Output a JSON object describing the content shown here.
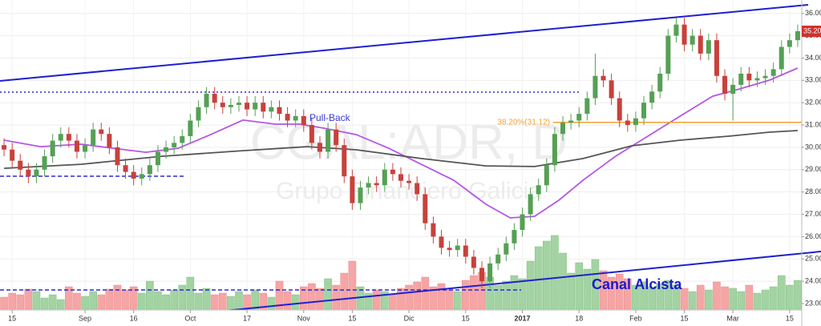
{
  "chart_data": {
    "type": "candlestick",
    "title": "CGAL:ADR, D",
    "subtitle": "Grupo Financiero Galicia",
    "categories": [
      null,
      "15",
      null,
      null,
      null,
      null,
      null,
      null,
      null,
      null,
      "Sep",
      null,
      null,
      null,
      null,
      null,
      "16",
      null,
      null,
      null,
      null,
      null,
      null,
      "Oct",
      null,
      null,
      null,
      null,
      null,
      null,
      "17",
      null,
      null,
      null,
      null,
      null,
      null,
      "Nov",
      null,
      null,
      null,
      null,
      null,
      "15",
      null,
      null,
      null,
      null,
      null,
      null,
      "Dic",
      null,
      null,
      null,
      null,
      null,
      null,
      "15",
      null,
      null,
      null,
      null,
      null,
      null,
      "2017",
      null,
      null,
      null,
      null,
      null,
      null,
      "18",
      null,
      null,
      null,
      null,
      null,
      null,
      "Feb",
      null,
      null,
      null,
      null,
      null,
      "15",
      null,
      null,
      null,
      null,
      null,
      "Mar",
      null,
      null,
      null,
      null,
      null,
      null,
      "15",
      null
    ],
    "open": [
      30.1,
      29.9,
      29.4,
      29.0,
      28.7,
      29.0,
      29.6,
      30.3,
      30.6,
      30.3,
      29.8,
      30.1,
      30.8,
      30.6,
      30.0,
      29.2,
      28.9,
      28.6,
      28.8,
      29.2,
      29.8,
      30.0,
      30.2,
      30.5,
      31.2,
      31.8,
      32.4,
      32.0,
      31.8,
      31.9,
      32.0,
      31.7,
      32.0,
      31.6,
      31.8,
      31.5,
      31.2,
      31.4,
      31.0,
      30.2,
      29.8,
      30.8,
      30.1,
      28.7,
      27.5,
      28.2,
      28.4,
      28.3,
      29.0,
      28.8,
      28.5,
      28.4,
      27.9,
      26.6,
      26.0,
      25.5,
      25.4,
      25.6,
      25.1,
      24.6,
      24.0,
      24.8,
      25.2,
      25.7,
      26.3,
      27.0,
      27.9,
      28.3,
      29.2,
      30.6,
      31.1,
      31.2,
      31.5,
      32.2,
      33.2,
      33.0,
      32.2,
      31.2,
      31.0,
      31.3,
      32.0,
      32.5,
      33.3,
      35.0,
      35.5,
      34.6,
      35.0,
      34.2,
      34.8,
      33.2,
      32.4,
      32.8,
      33.3,
      33.0,
      33.1,
      33.2,
      33.5,
      34.5,
      34.8
    ],
    "high": [
      30.4,
      30.2,
      29.7,
      29.3,
      29.3,
      29.9,
      30.6,
      30.9,
      30.9,
      30.6,
      30.4,
      31.1,
      31.1,
      30.9,
      30.3,
      29.5,
      29.2,
      29.1,
      29.5,
      30.1,
      30.3,
      30.5,
      30.8,
      31.5,
      32.1,
      32.7,
      32.7,
      32.3,
      32.2,
      32.3,
      32.3,
      32.3,
      32.3,
      32.1,
      32.1,
      31.8,
      31.7,
      31.7,
      31.3,
      30.5,
      31.1,
      31.1,
      30.4,
      29.0,
      28.5,
      28.7,
      28.7,
      29.3,
      29.3,
      29.1,
      28.8,
      28.7,
      28.2,
      26.9,
      26.3,
      25.8,
      25.9,
      25.9,
      25.4,
      24.9,
      25.1,
      25.5,
      26.0,
      26.6,
      27.3,
      28.2,
      28.6,
      29.5,
      30.9,
      31.4,
      31.5,
      31.8,
      32.5,
      34.2,
      33.5,
      33.3,
      32.5,
      31.5,
      31.6,
      32.3,
      32.8,
      33.6,
      35.3,
      35.8,
      35.8,
      35.3,
      35.3,
      35.1,
      35.1,
      33.5,
      33.1,
      33.6,
      33.6,
      33.4,
      33.5,
      33.8,
      34.8,
      35.1,
      35.5
    ],
    "low": [
      29.6,
      29.1,
      28.7,
      28.4,
      28.4,
      28.7,
      29.3,
      30.0,
      30.0,
      29.5,
      29.5,
      29.8,
      30.3,
      29.7,
      28.9,
      28.6,
      28.3,
      28.3,
      28.5,
      28.9,
      29.5,
      29.7,
      29.9,
      30.2,
      30.9,
      31.5,
      31.7,
      31.5,
      31.5,
      31.6,
      31.4,
      31.4,
      31.3,
      31.3,
      31.2,
      30.9,
      30.9,
      30.7,
      29.9,
      29.5,
      29.5,
      29.8,
      28.4,
      27.2,
      27.2,
      27.9,
      28.0,
      28.0,
      28.5,
      28.2,
      28.1,
      27.6,
      26.3,
      25.7,
      25.2,
      25.1,
      25.1,
      24.8,
      24.3,
      23.7,
      23.7,
      24.5,
      24.9,
      25.4,
      26.0,
      26.7,
      27.6,
      28.0,
      28.9,
      30.3,
      30.8,
      30.9,
      31.2,
      31.9,
      32.7,
      31.9,
      30.9,
      30.7,
      30.7,
      31.0,
      31.7,
      32.2,
      33.0,
      34.7,
      34.3,
      34.3,
      33.9,
      33.9,
      32.9,
      32.1,
      31.2,
      32.5,
      32.7,
      32.7,
      32.8,
      32.9,
      33.2,
      34.2,
      34.5
    ],
    "close": [
      29.9,
      29.4,
      29.0,
      28.7,
      29.0,
      29.6,
      30.3,
      30.6,
      30.3,
      29.8,
      30.1,
      30.8,
      30.6,
      30.0,
      29.2,
      28.9,
      28.6,
      28.8,
      29.2,
      29.8,
      30.0,
      30.2,
      30.5,
      31.2,
      31.8,
      32.4,
      32.0,
      31.8,
      31.9,
      32.0,
      31.7,
      32.0,
      31.6,
      31.8,
      31.5,
      31.2,
      31.4,
      31.0,
      30.2,
      29.8,
      30.8,
      30.1,
      28.7,
      27.5,
      28.2,
      28.4,
      28.3,
      29.0,
      28.8,
      28.5,
      28.4,
      27.9,
      26.6,
      26.0,
      25.5,
      25.4,
      25.6,
      25.1,
      24.6,
      24.0,
      24.8,
      25.2,
      25.7,
      26.3,
      27.0,
      27.9,
      28.3,
      29.2,
      30.6,
      31.1,
      31.2,
      31.5,
      32.2,
      33.2,
      33.0,
      32.2,
      31.2,
      31.0,
      31.3,
      32.0,
      32.5,
      33.3,
      35.0,
      35.5,
      34.6,
      35.0,
      34.2,
      34.8,
      33.2,
      32.4,
      32.8,
      33.3,
      33.0,
      33.1,
      33.2,
      33.5,
      34.5,
      34.8,
      35.2
    ],
    "volume": [
      15,
      20,
      18,
      25,
      22,
      14,
      18,
      12,
      28,
      20,
      16,
      22,
      18,
      25,
      30,
      24,
      28,
      20,
      35,
      22,
      18,
      24,
      30,
      40,
      20,
      26,
      18,
      20,
      16,
      22,
      18,
      24,
      20,
      15,
      35,
      22,
      18,
      28,
      32,
      26,
      38,
      30,
      45,
      60,
      28,
      20,
      24,
      22,
      18,
      26,
      30,
      34,
      40,
      28,
      32,
      24,
      22,
      36,
      42,
      46,
      40,
      30,
      35,
      42,
      38,
      60,
      78,
      85,
      92,
      70,
      45,
      58,
      50,
      62,
      48,
      40,
      44,
      38,
      30,
      34,
      28,
      32,
      36,
      30,
      26,
      22,
      30,
      24,
      34,
      28,
      26,
      22,
      30,
      20,
      24,
      28,
      42,
      30,
      36
    ],
    "ylim": [
      22.75,
      36.6
    ],
    "yticks": [
      {
        "value": 23,
        "label": "23.00"
      },
      {
        "value": 24,
        "label": "24.00"
      },
      {
        "value": 25,
        "label": "25.00"
      },
      {
        "value": 26,
        "label": "26.00"
      },
      {
        "value": 27,
        "label": "27.00"
      },
      {
        "value": 28,
        "label": "28.00"
      },
      {
        "value": 29,
        "label": "29.00"
      },
      {
        "value": 30,
        "label": "30.00"
      },
      {
        "value": 31,
        "label": "31.00"
      },
      {
        "value": 32,
        "label": "32.00"
      },
      {
        "value": 33,
        "label": "33.00"
      },
      {
        "value": 34,
        "label": "34.00"
      },
      {
        "value": 35,
        "label": "35.00"
      },
      {
        "value": 36,
        "label": "36.00"
      }
    ],
    "grid": true,
    "colors": {
      "up": "#55a055",
      "down": "#c8413c",
      "volume_up": "#a3d3a3",
      "volume_down": "#f5a5a5"
    },
    "moving_averages": [
      {
        "color": "#b456e6",
        "x": [
          0,
          4.5,
          9.5,
          13.5,
          17.5,
          21.5,
          25.5,
          29.5,
          33.5,
          36.5,
          39.5,
          43.5,
          47.5,
          51.5,
          55.5,
          59.5,
          62.5,
          65.5,
          68.5,
          71.5,
          75.5,
          79.5,
          83.5,
          87.5,
          90.5,
          94.5,
          98
        ],
        "values": [
          30.32,
          30.03,
          30.14,
          29.96,
          29.78,
          29.96,
          30.57,
          31.22,
          31.04,
          31.04,
          30.86,
          30.57,
          29.96,
          29.24,
          28.53,
          27.45,
          26.84,
          26.91,
          27.63,
          28.53,
          29.6,
          30.5,
          31.4,
          32.29,
          32.58,
          33.01,
          33.55
        ]
      },
      {
        "color": "#555555",
        "x": [
          0,
          9.5,
          19.5,
          29.5,
          37.5,
          43.5,
          51.5,
          59.5,
          65.5,
          71.5,
          77.5,
          83.5,
          89.5,
          94.5,
          98
        ],
        "values": [
          29.06,
          29.24,
          29.6,
          29.85,
          30.03,
          29.89,
          29.5,
          29.17,
          29.14,
          29.5,
          30.07,
          30.32,
          30.5,
          30.68,
          30.75
        ]
      }
    ],
    "fib_level": {
      "label": "38.20%(31.12)",
      "value": 31.12,
      "color": "#f5a030"
    },
    "last_price": {
      "value": 35.2,
      "label": "35.20"
    },
    "annotations": {
      "pullback": "Pull-Back",
      "channel": "Canal Alcista"
    }
  }
}
